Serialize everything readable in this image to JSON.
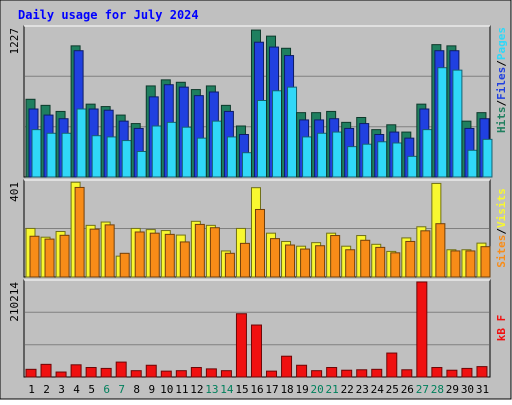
{
  "chart_data": {
    "type": "bar",
    "title": "Daily usage for July 2024",
    "categories": [
      "1",
      "2",
      "3",
      "4",
      "5",
      "6",
      "7",
      "8",
      "9",
      "10",
      "11",
      "12",
      "13",
      "14",
      "15",
      "16",
      "17",
      "18",
      "19",
      "20",
      "21",
      "22",
      "23",
      "24",
      "25",
      "26",
      "27",
      "28",
      "29",
      "30",
      "31"
    ],
    "weekend_days": [
      "6",
      "7",
      "13",
      "14",
      "20",
      "21",
      "27",
      "28"
    ],
    "panels": [
      {
        "name": "pages-files-hits",
        "ymax_label": "1227",
        "ylim": [
          0,
          1227
        ],
        "legend": [
          "Pages",
          "Files",
          "Hits"
        ],
        "series": [
          {
            "name": "Hits",
            "color": "#1f7f5f",
            "values": [
              640,
              590,
              540,
              1080,
              600,
              580,
              510,
              440,
              750,
              800,
              780,
              720,
              750,
              590,
              420,
              1210,
              1160,
              1060,
              530,
              530,
              540,
              450,
              490,
              390,
              430,
              370,
              600,
              1090,
              1080,
              460,
              530
            ]
          },
          {
            "name": "Files",
            "color": "#2040e0",
            "values": [
              560,
              510,
              480,
              1040,
              560,
              550,
              460,
              400,
              660,
              760,
              740,
              670,
              700,
              540,
              350,
              1110,
              1070,
              1000,
              470,
              470,
              480,
              400,
              440,
              350,
              370,
              320,
              560,
              1040,
              1040,
              400,
              480
            ]
          },
          {
            "name": "Pages",
            "color": "#30d8f8",
            "values": [
              390,
              360,
              360,
              560,
              340,
              330,
              300,
              210,
              420,
              450,
              410,
              320,
              460,
              330,
              200,
              630,
              710,
              740,
              330,
              360,
              370,
              250,
              270,
              290,
              280,
              170,
              390,
              900,
              880,
              220,
              310
            ]
          }
        ]
      },
      {
        "name": "visits-sites",
        "ymax_label": "401",
        "ylim": [
          0,
          401
        ],
        "legend": [
          "Visits",
          "Sites"
        ],
        "series": [
          {
            "name": "Visits",
            "color": "#f8f830",
            "values": [
              205,
              168,
              192,
              400,
              218,
              232,
              88,
              205,
              200,
              196,
              177,
              235,
              218,
              110,
              205,
              377,
              185,
              150,
              130,
              145,
              185,
              130,
              175,
              138,
              108,
              165,
              212,
              395,
              115,
              115,
              143
            ]
          },
          {
            "name": "Sites",
            "color": "#f88c18",
            "values": [
              172,
              160,
              176,
              378,
              202,
              220,
              100,
              190,
              185,
              180,
              148,
              222,
              208,
              100,
              142,
              285,
              162,
              135,
              118,
              132,
              175,
              115,
              155,
              125,
              102,
              150,
              195,
              225,
              110,
              110,
              128
            ]
          }
        ]
      },
      {
        "name": "kbytes",
        "ymax_label": "210214",
        "ylim": [
          0,
          210214
        ],
        "legend": [
          "kB F"
        ],
        "series": [
          {
            "name": "kB F",
            "color": "#f01010",
            "values": [
              17000,
              28000,
              11000,
              27000,
              21000,
              19000,
              33000,
              14000,
              26000,
              13000,
              14000,
              21000,
              18000,
              14000,
              140000,
              115000,
              13000,
              46000,
              26000,
              14000,
              21000,
              15000,
              16000,
              17000,
              53000,
              16000,
              210214,
              21000,
              15000,
              19000,
              23000
            ]
          }
        ]
      }
    ],
    "colors": {
      "background": "#c0c0c0",
      "plot_area": "#c0c0c0",
      "title": "#0000ff",
      "weekday_label": "#000000",
      "weekend_label": "#00805c"
    }
  }
}
